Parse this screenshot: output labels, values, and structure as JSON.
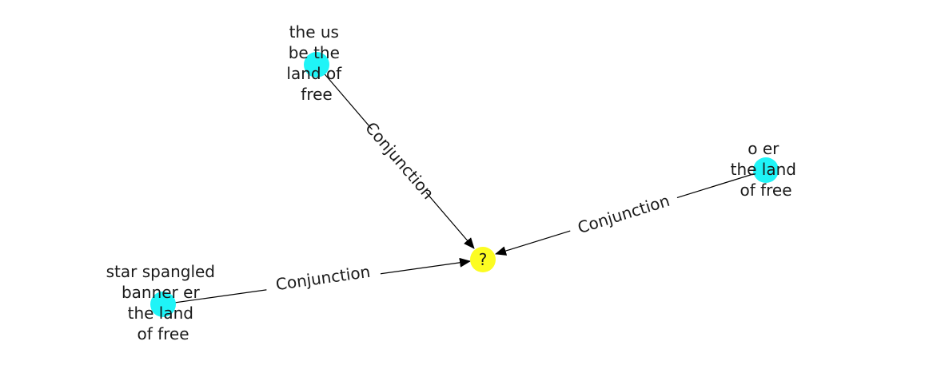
{
  "graph": {
    "colors": {
      "source_node": "#1ff4f7",
      "target_node": "#fcfc22",
      "edge": "#000000",
      "text": "#1a1a1a"
    },
    "target": {
      "label": "?"
    },
    "sources": [
      {
        "lines": [
          "the us",
          "be the",
          "land of",
          "free"
        ]
      },
      {
        "lines": [
          "o er",
          "the land",
          "of free"
        ]
      },
      {
        "lines": [
          "star spangled",
          "banner er",
          "the land",
          "of free"
        ]
      }
    ],
    "edges": [
      {
        "label": "Conjunction"
      },
      {
        "label": "Conjunction"
      },
      {
        "label": "Conjunction"
      }
    ]
  }
}
